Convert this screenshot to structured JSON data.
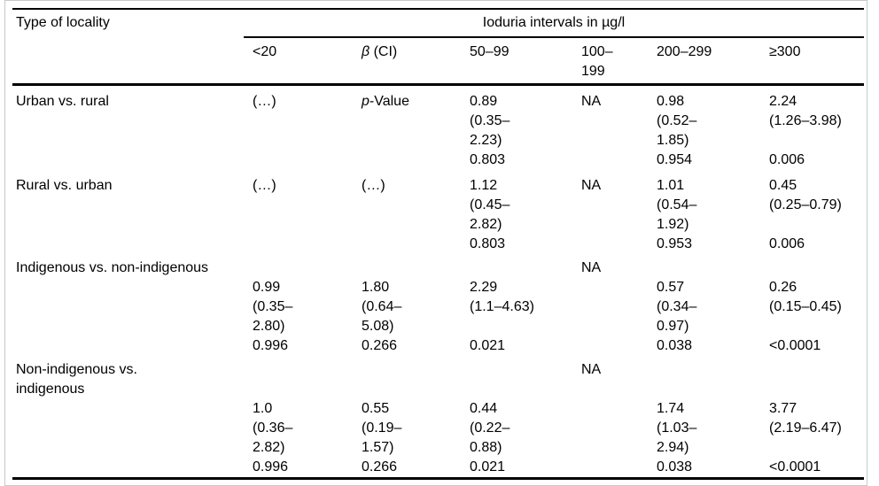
{
  "colors": {
    "text": "#000000",
    "rule": "#000000",
    "frame": "#c9c9c9",
    "background": "#ffffff"
  },
  "table": {
    "corner_header": "Type of locality",
    "span_header": "Ioduria intervals in µg/l",
    "column_headers": [
      {
        "name": "under-20",
        "lines": [
          "<20"
        ]
      },
      {
        "name": "beta-ci",
        "lines": [
          {
            "text": "β (CI)",
            "italic_len": 1
          }
        ]
      },
      {
        "name": "50-99",
        "lines": [
          "50–99"
        ]
      },
      {
        "name": "100-199",
        "lines": [
          "100–",
          "199"
        ]
      },
      {
        "name": "200-299",
        "lines": [
          "200–299"
        ]
      },
      {
        "name": "300-plus",
        "lines": [
          "≥300"
        ]
      }
    ],
    "rows": [
      {
        "label": [
          "Urban vs. rural"
        ],
        "cells": [
          [
            "(…)"
          ],
          [
            {
              "text": "p-Value",
              "italic_len": 1
            }
          ],
          [
            "0.89",
            "(0.35–",
            "2.23)",
            "0.803"
          ],
          [
            "NA"
          ],
          [
            "0.98",
            "(0.52–",
            "1.85)",
            "0.954"
          ],
          [
            "2.24",
            "(1.26–3.98)",
            "",
            "0.006"
          ]
        ]
      },
      {
        "label": [
          "Rural vs. urban"
        ],
        "cells": [
          [
            "(…)"
          ],
          [
            "(…)"
          ],
          [
            "1.12",
            "(0.45–",
            "2.82)",
            "0.803"
          ],
          [
            "NA"
          ],
          [
            "1.01",
            "(0.54–",
            "1.92)",
            "0.953"
          ],
          [
            "0.45",
            "(0.25–0.79)",
            "",
            "0.006"
          ]
        ]
      },
      {
        "label": [
          "Indigenous vs. non-indigenous"
        ],
        "cells": [
          [
            "",
            "0.99",
            "(0.35–",
            "2.80)",
            "0.996"
          ],
          [
            "",
            "1.80",
            "(0.64–",
            "5.08)",
            "0.266"
          ],
          [
            "",
            "2.29",
            "(1.1–4.63)",
            "",
            "0.021"
          ],
          [
            "NA"
          ],
          [
            "",
            "0.57",
            "(0.34–",
            "0.97)",
            "0.038"
          ],
          [
            "",
            "0.26",
            "(0.15–0.45)",
            "",
            "<0.0001"
          ]
        ]
      },
      {
        "label": [
          "Non-indigenous vs.",
          "indigenous"
        ],
        "cells": [
          [
            "",
            "",
            "1.0",
            "(0.36–",
            "2.82)",
            "0.996"
          ],
          [
            "",
            "",
            "0.55",
            "(0.19–",
            "1.57)",
            "0.266"
          ],
          [
            "",
            "",
            "0.44",
            "(0.22–",
            "0.88)",
            "0.021"
          ],
          [
            "NA"
          ],
          [
            "",
            "",
            "1.74",
            "(1.03–",
            "2.94)",
            "0.038"
          ],
          [
            "",
            "",
            "3.77",
            "(2.19–6.47)",
            "",
            "<0.0001"
          ]
        ]
      }
    ]
  }
}
